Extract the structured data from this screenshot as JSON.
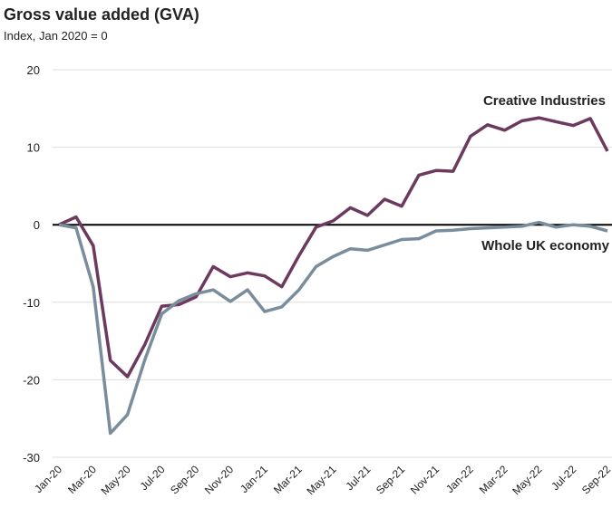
{
  "chart_data": {
    "type": "line",
    "title": "Gross value added (GVA)",
    "subtitle": "Index, Jan 2020 = 0",
    "categories": [
      "Jan-20",
      null,
      "Mar-20",
      null,
      "May-20",
      null,
      "Jul-20",
      null,
      "Sep-20",
      null,
      "Nov-20",
      null,
      "Jan-21",
      null,
      "Mar-21",
      null,
      "May-21",
      null,
      "Jul-21",
      null,
      "Sep-21",
      null,
      "Nov-21",
      null,
      "Jan-22",
      null,
      "Mar-22",
      null,
      "May-22",
      null,
      "Jul-22",
      null,
      "Sep-22"
    ],
    "series": [
      {
        "name": "Creative Industries",
        "color": "#6b3a5e",
        "values": [
          0,
          1,
          -2.7,
          -17.5,
          -19.6,
          -15.5,
          -10.5,
          -10.3,
          -9.3,
          -5.4,
          -6.7,
          -6.2,
          -6.6,
          -8,
          -4,
          -0.3,
          0.5,
          2.2,
          1.2,
          3.3,
          2.4,
          6.4,
          7,
          6.9,
          11.4,
          12.9,
          12.2,
          13.4,
          13.8,
          13.3,
          12.8,
          13.7,
          9.5
        ]
      },
      {
        "name": "Whole UK economy",
        "color": "#7a8d9c",
        "values": [
          0,
          -0.4,
          -8,
          -26.9,
          -24.5,
          -17.5,
          -11.5,
          -9.8,
          -8.9,
          -8.4,
          -9.9,
          -8.4,
          -11.2,
          -10.6,
          -8.4,
          -5.4,
          -4.1,
          -3.1,
          -3.3,
          -2.6,
          -1.9,
          -1.8,
          -0.8,
          -0.7,
          -0.5,
          -0.4,
          -0.3,
          -0.2,
          0.3,
          -0.3,
          0,
          -0.2,
          -0.8
        ]
      }
    ],
    "ylim": [
      -30,
      20
    ],
    "yticks": [
      -30,
      -20,
      -10,
      0,
      10,
      20
    ],
    "grid": true
  }
}
